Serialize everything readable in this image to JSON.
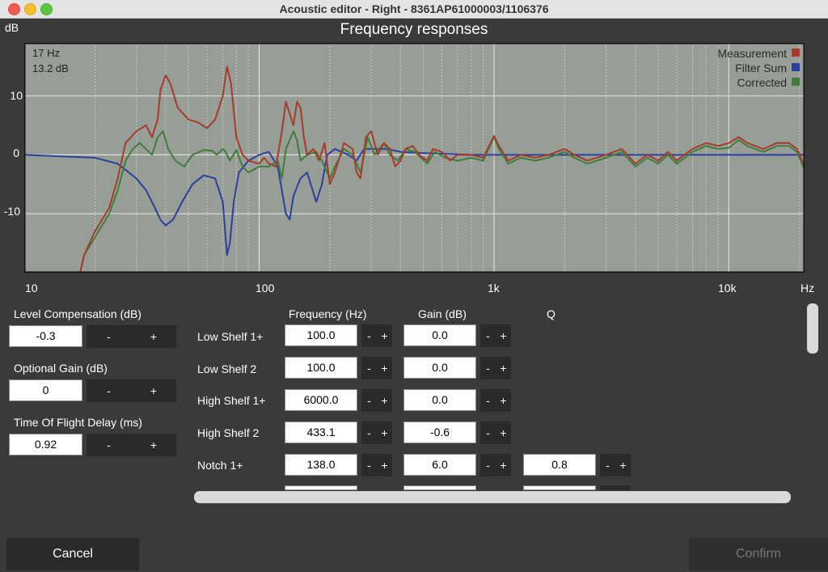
{
  "window": {
    "title": "Acoustic editor - Right - 8361AP61000003/1106376"
  },
  "chart": {
    "title": "Frequency responses",
    "y_unit": "dB",
    "x_unit": "Hz",
    "y_ticks": [
      "10",
      "0",
      "-10"
    ],
    "x_ticks": [
      "10",
      "100",
      "1k",
      "10k"
    ],
    "cursor": {
      "freq": "17 Hz",
      "level": "13.2 dB"
    },
    "legend": [
      {
        "label": "Measurement",
        "color": "#a83a2c"
      },
      {
        "label": "Filter Sum",
        "color": "#2a3fa0"
      },
      {
        "label": "Corrected",
        "color": "#3f7d3a"
      }
    ],
    "colors": {
      "background": "#979e96",
      "grid_major": "#d9ddd8",
      "grid_minor": "#c4c9c3"
    }
  },
  "chart_data": {
    "type": "line",
    "x_scale": "log",
    "xlim": [
      10,
      21000
    ],
    "ylim": [
      -20,
      19
    ],
    "xlabel": "Hz",
    "ylabel": "dB",
    "grid": true,
    "legend_position": "top-right",
    "series": [
      {
        "name": "Measurement",
        "color": "#a83a2c",
        "points": [
          [
            17.3,
            -20
          ],
          [
            18,
            -17
          ],
          [
            20,
            -13
          ],
          [
            23,
            -9
          ],
          [
            25,
            -4
          ],
          [
            27,
            2
          ],
          [
            30,
            4
          ],
          [
            33,
            5
          ],
          [
            35,
            3
          ],
          [
            37,
            6
          ],
          [
            38,
            11
          ],
          [
            40,
            13.5
          ],
          [
            42,
            12
          ],
          [
            45,
            8
          ],
          [
            50,
            6
          ],
          [
            55,
            5.5
          ],
          [
            60,
            4.5
          ],
          [
            65,
            6
          ],
          [
            70,
            10
          ],
          [
            73,
            15
          ],
          [
            76,
            12
          ],
          [
            80,
            3
          ],
          [
            85,
            0
          ],
          [
            90,
            -1
          ],
          [
            100,
            -1.5
          ],
          [
            105,
            -0.5
          ],
          [
            110,
            -1.5
          ],
          [
            118,
            -2
          ],
          [
            125,
            4
          ],
          [
            130,
            9
          ],
          [
            135,
            7
          ],
          [
            140,
            5
          ],
          [
            145,
            9
          ],
          [
            150,
            8
          ],
          [
            155,
            3
          ],
          [
            160,
            0
          ],
          [
            170,
            1
          ],
          [
            180,
            -1
          ],
          [
            190,
            2
          ],
          [
            200,
            -5
          ],
          [
            210,
            -3
          ],
          [
            230,
            2
          ],
          [
            250,
            1
          ],
          [
            260,
            -3
          ],
          [
            270,
            -4
          ],
          [
            285,
            3
          ],
          [
            300,
            4
          ],
          [
            320,
            0
          ],
          [
            340,
            2
          ],
          [
            360,
            1
          ],
          [
            380,
            -2
          ],
          [
            400,
            -1
          ],
          [
            420,
            1
          ],
          [
            450,
            1.5
          ],
          [
            480,
            0
          ],
          [
            520,
            -1
          ],
          [
            550,
            1
          ],
          [
            600,
            0.5
          ],
          [
            650,
            -1
          ],
          [
            700,
            0
          ],
          [
            800,
            0
          ],
          [
            900,
            -0.5
          ],
          [
            1000,
            3.2
          ],
          [
            1050,
            1.5
          ],
          [
            1150,
            -1
          ],
          [
            1300,
            0
          ],
          [
            1500,
            -0.5
          ],
          [
            1700,
            0
          ],
          [
            2000,
            1
          ],
          [
            2200,
            0
          ],
          [
            2500,
            -1
          ],
          [
            3000,
            0
          ],
          [
            3500,
            1
          ],
          [
            4000,
            -1.5
          ],
          [
            4500,
            0
          ],
          [
            5000,
            -1
          ],
          [
            5500,
            0.5
          ],
          [
            6000,
            -1
          ],
          [
            7000,
            1
          ],
          [
            8000,
            2
          ],
          [
            9000,
            1.5
          ],
          [
            10000,
            2
          ],
          [
            11000,
            3
          ],
          [
            12000,
            2
          ],
          [
            14000,
            1
          ],
          [
            16000,
            2
          ],
          [
            18000,
            2
          ],
          [
            19500,
            1
          ],
          [
            21000,
            -2
          ]
        ]
      },
      {
        "name": "Filter Sum",
        "color": "#2a3fa0",
        "points": [
          [
            10,
            0
          ],
          [
            20,
            -0.5
          ],
          [
            25,
            -1.5
          ],
          [
            30,
            -4
          ],
          [
            33,
            -6
          ],
          [
            36,
            -9
          ],
          [
            38,
            -11
          ],
          [
            40,
            -12
          ],
          [
            43,
            -11
          ],
          [
            47,
            -8
          ],
          [
            52,
            -5
          ],
          [
            58,
            -3.5
          ],
          [
            65,
            -4
          ],
          [
            70,
            -8
          ],
          [
            73,
            -17
          ],
          [
            75,
            -15
          ],
          [
            78,
            -8
          ],
          [
            82,
            -3
          ],
          [
            90,
            -1
          ],
          [
            100,
            0
          ],
          [
            110,
            0.5
          ],
          [
            120,
            -2
          ],
          [
            130,
            -10
          ],
          [
            135,
            -11
          ],
          [
            140,
            -7
          ],
          [
            150,
            -4
          ],
          [
            160,
            -3
          ],
          [
            175,
            -8
          ],
          [
            185,
            -5
          ],
          [
            195,
            0
          ],
          [
            210,
            1
          ],
          [
            240,
            0
          ],
          [
            260,
            -1
          ],
          [
            280,
            1
          ],
          [
            300,
            1
          ],
          [
            350,
            1
          ],
          [
            400,
            0.5
          ],
          [
            500,
            0.3
          ],
          [
            800,
            0
          ],
          [
            1000,
            0
          ],
          [
            21000,
            0
          ]
        ]
      },
      {
        "name": "Corrected",
        "color": "#3f7d3a",
        "points": [
          [
            17.3,
            -20
          ],
          [
            18,
            -17
          ],
          [
            20,
            -14
          ],
          [
            23,
            -10
          ],
          [
            25,
            -6
          ],
          [
            27,
            -1
          ],
          [
            29,
            1
          ],
          [
            31,
            2
          ],
          [
            33,
            1
          ],
          [
            35,
            0
          ],
          [
            37,
            3
          ],
          [
            38,
            3.5
          ],
          [
            39,
            4
          ],
          [
            41,
            1
          ],
          [
            44,
            -1
          ],
          [
            48,
            -2
          ],
          [
            52,
            0
          ],
          [
            58,
            0.8
          ],
          [
            63,
            0.7
          ],
          [
            66,
            0
          ],
          [
            70,
            1
          ],
          [
            72,
            0.5
          ],
          [
            75,
            -1
          ],
          [
            80,
            0.8
          ],
          [
            85,
            -2
          ],
          [
            90,
            -3
          ],
          [
            100,
            -2
          ],
          [
            110,
            -2
          ],
          [
            120,
            -1
          ],
          [
            125,
            -4
          ],
          [
            130,
            1
          ],
          [
            140,
            4
          ],
          [
            145,
            2.5
          ],
          [
            150,
            -1
          ],
          [
            160,
            0
          ],
          [
            175,
            0.5
          ],
          [
            185,
            -1
          ],
          [
            200,
            -4
          ],
          [
            210,
            -2
          ],
          [
            230,
            1
          ],
          [
            250,
            0
          ],
          [
            270,
            -3
          ],
          [
            290,
            3
          ],
          [
            310,
            0
          ],
          [
            340,
            2
          ],
          [
            360,
            0
          ],
          [
            390,
            -1
          ],
          [
            420,
            1
          ],
          [
            460,
            0.5
          ],
          [
            520,
            -1.5
          ],
          [
            560,
            0.5
          ],
          [
            620,
            -0.5
          ],
          [
            700,
            -1
          ],
          [
            800,
            -0.5
          ],
          [
            900,
            -1
          ],
          [
            1000,
            3
          ],
          [
            1050,
            1
          ],
          [
            1150,
            -1.5
          ],
          [
            1300,
            -0.5
          ],
          [
            1500,
            -1
          ],
          [
            1700,
            -0.5
          ],
          [
            2000,
            0.5
          ],
          [
            2200,
            -0.5
          ],
          [
            2500,
            -1.5
          ],
          [
            3000,
            -0.5
          ],
          [
            3500,
            0.5
          ],
          [
            4000,
            -2
          ],
          [
            4500,
            -0.5
          ],
          [
            5000,
            -1.5
          ],
          [
            5500,
            0
          ],
          [
            6000,
            -1.5
          ],
          [
            7000,
            0.5
          ],
          [
            8000,
            1.5
          ],
          [
            9000,
            1
          ],
          [
            10000,
            1.2
          ],
          [
            11000,
            2.5
          ],
          [
            12000,
            1.5
          ],
          [
            14000,
            0.5
          ],
          [
            16000,
            1.5
          ],
          [
            18000,
            1.5
          ],
          [
            19500,
            0.5
          ],
          [
            21000,
            -2.5
          ]
        ]
      }
    ]
  },
  "left_panel": {
    "level_comp": {
      "label": "Level Compensation (dB)",
      "value": "-0.3"
    },
    "optional_gain": {
      "label": "Optional Gain (dB)",
      "value": "0"
    },
    "tof_delay": {
      "label": "Time Of Flight Delay (ms)",
      "value": "0.92"
    },
    "minus": "-",
    "plus": "+"
  },
  "filters": {
    "headers": {
      "frequency": "Frequency (Hz)",
      "gain": "Gain (dB)",
      "q": "Q"
    },
    "rows": [
      {
        "label": "Low Shelf 1+",
        "frequency": "100.0",
        "gain": "0.0"
      },
      {
        "label": "Low Shelf 2",
        "frequency": "100.0",
        "gain": "0.0"
      },
      {
        "label": "High Shelf 1+",
        "frequency": "6000.0",
        "gain": "0.0"
      },
      {
        "label": "High Shelf 2",
        "frequency": "433.1",
        "gain": "-0.6"
      },
      {
        "label": "Notch 1+",
        "frequency": "138.0",
        "gain": "6.0",
        "q": "0.8"
      }
    ]
  },
  "buttons": {
    "cancel": "Cancel",
    "confirm": "Confirm"
  }
}
